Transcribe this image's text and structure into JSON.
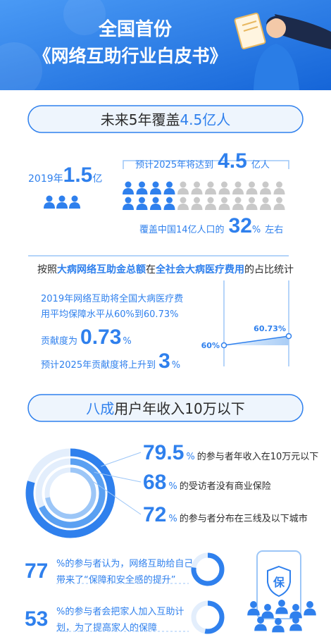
{
  "header": {
    "line1": "全国首份",
    "line2": "《网络互助行业白皮书》"
  },
  "coverage": {
    "heading": {
      "plain": "未来5年覆盖",
      "highlight": "4.5亿人"
    },
    "current": {
      "year": "2019年",
      "value": 1.5,
      "unit": "亿"
    },
    "forecast": {
      "label": "预计2025年将达到",
      "value": 4.5,
      "unit": "亿人",
      "share_prefix": "覆盖中国14亿人口的",
      "share": 32,
      "share_unit": "%",
      "share_suffix": "左右"
    }
  },
  "contribution": {
    "heading": [
      "按照",
      "大病网络互助金总额",
      "在",
      "全社会大病医疗费用",
      "的占比统计"
    ],
    "lines": [
      "2019年网络互助将全国大病医疗费",
      "用平均保障水平从60%到60.73%"
    ],
    "current_label": "贡献度为",
    "current": 0.73,
    "current_unit": "%",
    "forecast_label": "预计2025年贡献度将上升到",
    "forecast": 3,
    "forecast_unit": "%",
    "chart_labels": [
      "60%",
      "60.73%"
    ]
  },
  "income": {
    "heading": {
      "highlight": "八成",
      "plain": "用户年收入10万以下"
    },
    "stats": [
      {
        "value": 79.5,
        "unit": "%",
        "text": "的参与者年收入在10万元以下"
      },
      {
        "value": 68,
        "unit": "%",
        "text": "的受访者没有商业保险"
      },
      {
        "value": 72,
        "unit": "%",
        "text": "的参与者分布在三线及以下城市"
      }
    ]
  },
  "attitudes": [
    {
      "value": 77,
      "lines": [
        "%的参与者认为，网络互助给自己",
        "带来了“保障和安全感的提升”"
      ]
    },
    {
      "value": 53,
      "lines": [
        "%的参与者会把家人加入互助计",
        "划，为了提高家人的保障"
      ]
    }
  ],
  "illustration": {
    "badge": "保"
  }
}
